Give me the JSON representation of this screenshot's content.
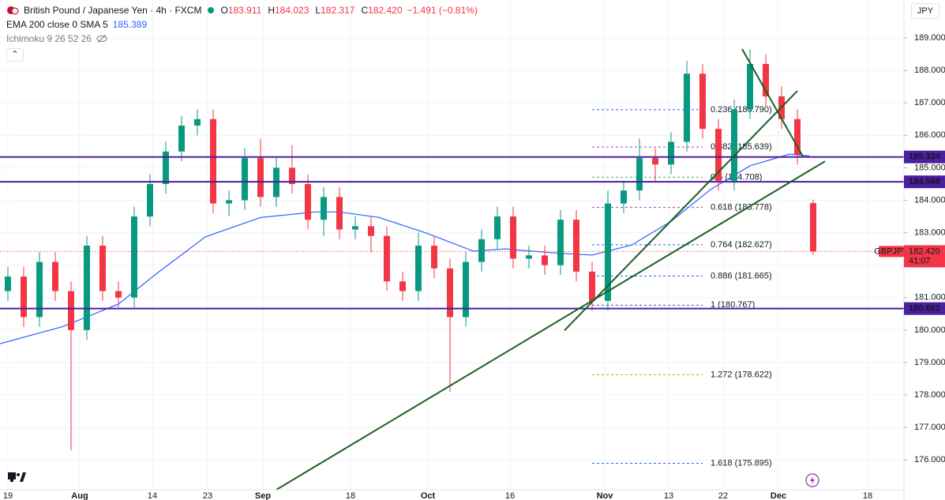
{
  "chart_data": {
    "type": "candlestick",
    "title": "British Pound / Japanese Yen · 4h · FXCM",
    "ohlc_header": [
      {
        "key": "O",
        "value": 183.911
      },
      {
        "key": "H",
        "value": 184.023
      },
      {
        "key": "L",
        "value": 182.317
      },
      {
        "key": "C",
        "value": 182.42,
        "label": "182.420"
      }
    ],
    "change": "−1.491 (−0.81%)",
    "indicators": [
      {
        "name": "EMA 200 close 0 SMA 5",
        "value": 185.389
      },
      {
        "name": "Ichimoku 9 26 52 26"
      }
    ],
    "currency": "JPY",
    "symbol": "GBPJPY",
    "countdown": "41:07",
    "last_price": {
      "value": 182.42,
      "label": "182.420"
    },
    "up_color": "#089981",
    "down_color": "#f23645",
    "x": [
      0,
      2,
      4,
      6,
      8,
      10,
      12,
      14,
      16,
      18,
      20,
      22,
      24,
      26,
      28,
      30,
      32,
      34,
      36,
      38,
      40,
      42,
      44,
      46,
      48,
      50,
      52,
      54,
      56,
      58,
      60,
      62,
      64,
      66,
      68,
      70,
      72,
      74,
      76,
      78,
      80,
      82,
      84,
      86,
      88,
      90,
      92,
      94,
      96,
      98,
      100,
      102
    ],
    "open": [
      181.2,
      181.65,
      180.4,
      182.1,
      181.2,
      180.0,
      182.6,
      181.2,
      181.0,
      183.5,
      184.5,
      185.5,
      186.3,
      186.5,
      183.9,
      184.0,
      185.3,
      184.1,
      185.0,
      184.5,
      183.4,
      184.1,
      183.1,
      183.2,
      182.9,
      181.5,
      181.2,
      182.6,
      181.9,
      180.4,
      182.1,
      182.8,
      183.5,
      182.2,
      182.3,
      182.0,
      183.4,
      181.8,
      180.9,
      183.9,
      184.3,
      185.3,
      185.1,
      185.8,
      187.9,
      186.2,
      184.6,
      186.8,
      188.2,
      187.2,
      186.5,
      183.911
    ],
    "high": [
      181.95,
      181.95,
      182.4,
      182.4,
      181.5,
      182.9,
      182.9,
      181.5,
      183.8,
      184.8,
      185.8,
      186.6,
      186.8,
      186.8,
      184.3,
      185.6,
      185.9,
      185.3,
      185.7,
      184.8,
      184.4,
      184.4,
      183.5,
      183.5,
      183.2,
      181.8,
      183.0,
      182.9,
      182.2,
      182.4,
      183.1,
      183.8,
      183.8,
      182.6,
      182.6,
      183.7,
      183.7,
      182.1,
      184.3,
      184.6,
      185.9,
      185.6,
      186.1,
      188.3,
      188.2,
      186.5,
      187.1,
      188.65,
      188.5,
      187.5,
      186.8,
      184.023
    ],
    "low": [
      180.9,
      180.1,
      180.1,
      180.9,
      176.3,
      179.7,
      180.9,
      180.7,
      180.7,
      183.2,
      184.2,
      185.2,
      186.0,
      183.6,
      183.5,
      183.7,
      183.8,
      183.8,
      184.2,
      183.1,
      182.9,
      182.8,
      182.8,
      182.4,
      181.2,
      180.9,
      180.9,
      181.6,
      178.1,
      180.1,
      181.8,
      182.5,
      181.9,
      181.9,
      181.7,
      181.7,
      181.5,
      180.6,
      180.6,
      183.6,
      184.0,
      184.6,
      184.8,
      185.5,
      185.9,
      184.3,
      184.3,
      186.5,
      186.9,
      186.2,
      185.1,
      182.317
    ],
    "close": [
      181.65,
      180.4,
      182.1,
      181.2,
      180.0,
      182.6,
      181.2,
      181.0,
      183.5,
      184.5,
      185.5,
      186.3,
      186.5,
      183.9,
      184.0,
      185.3,
      184.1,
      185.0,
      184.5,
      183.4,
      184.1,
      183.1,
      183.2,
      182.9,
      181.5,
      181.2,
      182.6,
      181.9,
      180.4,
      182.1,
      182.8,
      183.5,
      182.2,
      182.3,
      182.0,
      183.4,
      181.8,
      180.9,
      183.9,
      184.3,
      185.3,
      185.1,
      185.8,
      187.9,
      186.2,
      184.6,
      186.8,
      188.2,
      187.2,
      186.5,
      185.4,
      182.42
    ],
    "ema": {
      "color": "#2962ff",
      "x": [
        -1,
        7,
        14,
        19,
        25,
        32,
        39,
        42,
        47,
        53,
        59,
        63,
        69,
        74,
        79,
        84,
        89,
        94,
        99,
        101.5
      ],
      "values": [
        179.58,
        180.11,
        180.8,
        181.77,
        182.87,
        183.47,
        183.64,
        183.64,
        183.47,
        182.99,
        182.43,
        182.5,
        182.38,
        182.31,
        182.62,
        183.35,
        184.33,
        185.06,
        185.42,
        185.37
      ]
    },
    "levels": {
      "color": "#4b1fa0",
      "values": [
        185.334,
        184.568,
        180.662
      ]
    },
    "fib": {
      "x": [
        74,
        88
      ],
      "items": [
        {
          "label": "0.236 (186.790)",
          "value": 186.79,
          "color": "#2962ff"
        },
        {
          "label": "0.382 (185.639)",
          "value": 185.639,
          "color": "#7e57c2"
        },
        {
          "label": "0.5 (184.708)",
          "value": 184.708,
          "color": "#4caf50"
        },
        {
          "label": "0.618 (183.778)",
          "value": 183.778,
          "color": "#7e57c2"
        },
        {
          "label": "0.764 (182.627)",
          "value": 182.627,
          "color": "#2962ff"
        },
        {
          "label": "0.886 (181.665)",
          "value": 181.665,
          "color": "#2962ff"
        },
        {
          "label": "1 (180.767)",
          "value": 180.767,
          "color": "#3f51b5"
        },
        {
          "label": "1.272 (178.622)",
          "value": 178.622,
          "color": "#9bbd27"
        },
        {
          "label": "1.618 (175.895)",
          "value": 175.895,
          "color": "#2962ff"
        }
      ]
    },
    "trendlines": {
      "color": "#1b5e20",
      "items": [
        {
          "x": [
            34,
            103.5
          ],
          "y": [
            175.08,
            185.2
          ]
        },
        {
          "x": [
            70.5,
            100
          ],
          "y": [
            179.99,
            187.37
          ]
        },
        {
          "x": [
            93,
            100.7
          ],
          "y": [
            188.66,
            185.35
          ]
        }
      ]
    },
    "xlim": [
      -1,
      113.5
    ],
    "ylim": [
      175.08,
      190.17
    ],
    "xticks": [
      {
        "value": 0,
        "label": "19"
      },
      {
        "value": 9.1,
        "label": "Aug"
      },
      {
        "value": 18.3,
        "label": "14"
      },
      {
        "value": 25.3,
        "label": "23"
      },
      {
        "value": 32.3,
        "label": "Sep"
      },
      {
        "value": 43.4,
        "label": "18"
      },
      {
        "value": 53.2,
        "label": "Oct"
      },
      {
        "value": 63.6,
        "label": "16"
      },
      {
        "value": 75.6,
        "label": "Nov"
      },
      {
        "value": 83.7,
        "label": "13"
      },
      {
        "value": 90.6,
        "label": "22"
      },
      {
        "value": 97.6,
        "label": "Dec"
      },
      {
        "value": 108.9,
        "label": "18"
      }
    ],
    "yticks": [
      {
        "value": 176,
        "label": "176.000"
      },
      {
        "value": 177,
        "label": "177.000"
      },
      {
        "value": 178,
        "label": "178.000"
      },
      {
        "value": 179,
        "label": "179.000"
      },
      {
        "value": 180,
        "label": "180.000"
      },
      {
        "value": 181,
        "label": "181.000"
      },
      {
        "value": 182,
        "label": "182.000"
      },
      {
        "value": 183,
        "label": "183.000"
      },
      {
        "value": 184,
        "label": "184.000"
      },
      {
        "value": 185,
        "label": "185.000"
      },
      {
        "value": 186,
        "label": "186.000"
      },
      {
        "value": 187,
        "label": "187.000"
      },
      {
        "value": 188,
        "label": "188.000"
      },
      {
        "value": 189,
        "label": "189.000"
      }
    ]
  }
}
